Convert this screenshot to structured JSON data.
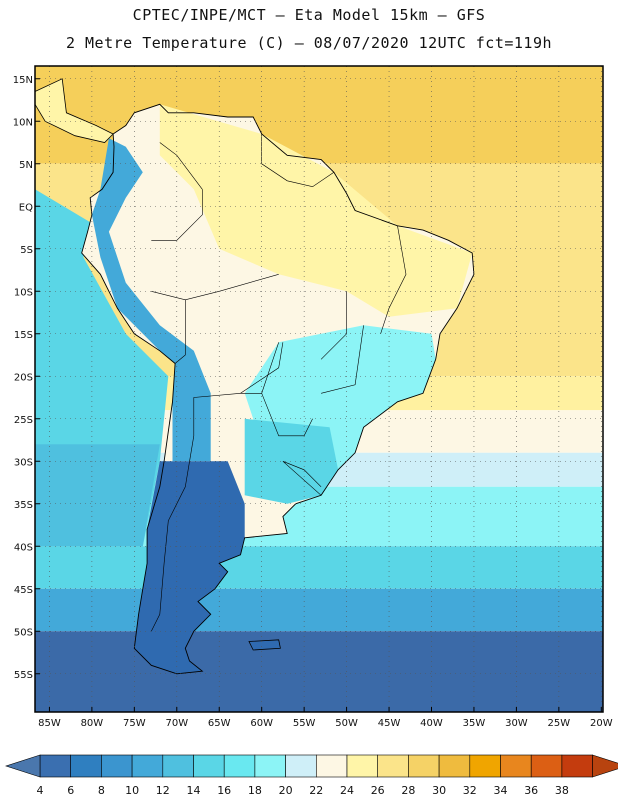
{
  "header": {
    "line1": "CPTEC/INPE/MCT –  Eta Model 15km – GFS",
    "line2": "2 Metre Temperature (C) – 08/07/2020 12UTC fct=119h"
  },
  "map": {
    "lat_labels": [
      "15N",
      "10N",
      "5N",
      "EQ",
      "5S",
      "10S",
      "15S",
      "20S",
      "25S",
      "30S",
      "35S",
      "40S",
      "45S",
      "50S",
      "55S"
    ],
    "lon_labels": [
      "85W",
      "80W",
      "75W",
      "70W",
      "65W",
      "60W",
      "55W",
      "50W",
      "45W",
      "40W",
      "35W",
      "30W",
      "25W",
      "20W"
    ]
  },
  "legend": {
    "ticks": [
      "4",
      "6",
      "8",
      "10",
      "12",
      "14",
      "16",
      "18",
      "20",
      "22",
      "24",
      "26",
      "28",
      "30",
      "32",
      "34",
      "36",
      "38"
    ],
    "colors": [
      "#3a6fb0",
      "#2f7fc0",
      "#3b95cf",
      "#43a9d9",
      "#4fc0df",
      "#5ad6e6",
      "#69e8f0",
      "#8cf4f6",
      "#cfeff8",
      "#fdf7e4",
      "#fff5a8",
      "#fbe48a",
      "#f5d266",
      "#efbb3e",
      "#f0a500",
      "#e8861e",
      "#dc5f14",
      "#c43c0e"
    ],
    "low_color": "#4a77ad",
    "high_color": "#b8430f"
  },
  "field": {
    "ocean_north_tropical": "#f5cf5a",
    "ocean_north_subtropical": "#fbe48a",
    "ocean_sub_20S": "#fff1a0",
    "ocean_25_30S": "#fdf7e4",
    "ocean_30_33S": "#cfeff8",
    "ocean_33_40S": "#8cf4f6",
    "ocean_40_45S": "#5ad6e6",
    "ocean_45_50S": "#43a9d9",
    "ocean_south": "#3b6aa8",
    "pacific_tropical": "#5ad6e6",
    "pacific_mid": "#4fc0df",
    "land_amazon": "#fdf7e4",
    "land_north": "#fff5a8",
    "land_southeast": "#8cf4f6",
    "land_cool": "#5ad6e6",
    "andes": "#43a9d9",
    "patagonia": "#2f6ab0"
  }
}
